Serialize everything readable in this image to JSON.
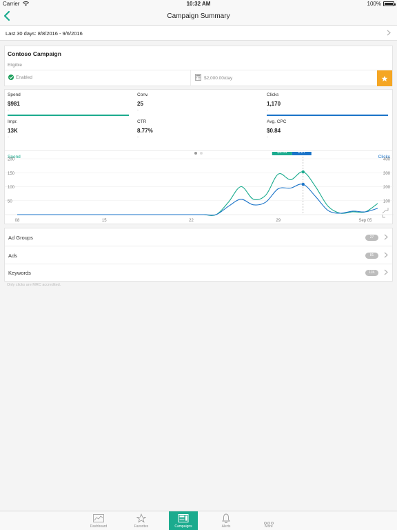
{
  "status_bar": {
    "carrier": "Carrier",
    "time": "10:32 AM",
    "battery": "100%"
  },
  "nav": {
    "title": "Campaign Summary"
  },
  "date_range": {
    "label": "Last 30 days: 8/8/2016 - 9/6/2016"
  },
  "campaign": {
    "name": "Contoso Campaign",
    "subtitle": "Eligible",
    "status": "Enabled",
    "budget": "$2,000.00/day"
  },
  "metrics": [
    {
      "label": "Spend",
      "value": "$981",
      "change": "-",
      "bar_color": "#1bab8e"
    },
    {
      "label": "Conv.",
      "value": "25",
      "change": "-",
      "bar_color": ""
    },
    {
      "label": "Clicks",
      "value": "1,170",
      "change": "-",
      "bar_color": "#1a73c8"
    },
    {
      "label": "Impr.",
      "value": "13K",
      "change": "-",
      "bar_color": ""
    },
    {
      "label": "CTR",
      "value": "8.77%",
      "change": "-",
      "bar_color": ""
    },
    {
      "label": "Avg. CPC",
      "value": "$0.84",
      "change": "-",
      "bar_color": ""
    }
  ],
  "chart_data": {
    "type": "line",
    "left_axis_label": "Spend",
    "right_axis_label": "Clicks",
    "x_ticks": [
      "08",
      "15",
      "22",
      "29",
      "Sep 05"
    ],
    "x": [
      "8/8",
      "8/9",
      "8/10",
      "8/11",
      "8/12",
      "8/13",
      "8/14",
      "8/15",
      "8/16",
      "8/17",
      "8/18",
      "8/19",
      "8/20",
      "8/21",
      "8/22",
      "8/23",
      "8/24",
      "8/25",
      "8/26",
      "8/27",
      "8/28",
      "8/29",
      "8/30",
      "8/31",
      "9/1",
      "9/2",
      "9/3",
      "9/4",
      "9/5",
      "9/6"
    ],
    "left_ylim": [
      0,
      200
    ],
    "left_ticks": [
      50,
      100,
      150,
      200
    ],
    "right_ylim": [
      0,
      400
    ],
    "right_ticks": [
      100,
      200,
      300,
      400
    ],
    "series": [
      {
        "name": "Spend",
        "color": "#1bab8e",
        "axis": "left",
        "values": [
          0,
          0,
          0,
          0,
          0,
          0,
          0,
          0,
          0,
          0,
          0,
          0,
          0,
          0,
          0,
          0,
          0,
          45,
          100,
          55,
          70,
          145,
          125,
          153,
          100,
          30,
          5,
          10,
          10,
          40
        ]
      },
      {
        "name": "Clicks",
        "color": "#1a73c8",
        "axis": "right",
        "values": [
          0,
          0,
          0,
          0,
          0,
          0,
          0,
          0,
          0,
          0,
          0,
          0,
          0,
          0,
          0,
          0,
          0,
          60,
          110,
          70,
          90,
          185,
          190,
          217,
          130,
          30,
          10,
          25,
          20,
          45
        ]
      }
    ],
    "tooltip": {
      "index": 23,
      "spend": "$153",
      "clicks": "217"
    }
  },
  "list": [
    {
      "label": "Ad Groups",
      "count": "27"
    },
    {
      "label": "Ads",
      "count": "81"
    },
    {
      "label": "Keywords",
      "count": "11K"
    }
  ],
  "footnote": "Only clicks are MRC accredited.",
  "tabs": [
    {
      "label": "Dashboard",
      "icon": "chart-icon",
      "active": false
    },
    {
      "label": "Favorites",
      "icon": "star-icon",
      "active": false
    },
    {
      "label": "Campaigns",
      "icon": "campaigns-icon",
      "active": true
    },
    {
      "label": "Alerts",
      "icon": "bell-icon",
      "active": false
    },
    {
      "label": "More",
      "icon": "more-icon",
      "active": false
    }
  ]
}
